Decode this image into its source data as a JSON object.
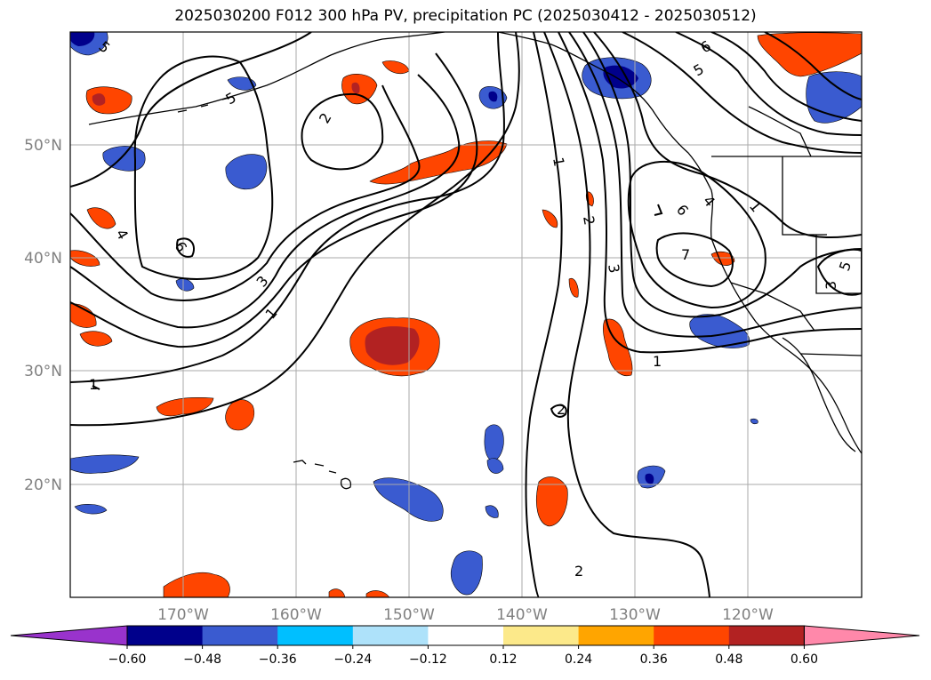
{
  "title": "2025030200 F012 300 hPa PV, precipitation PC (2025030412 - 2025030512)",
  "grid": {
    "lon_labels": [
      "170°W",
      "160°W",
      "150°W",
      "140°W",
      "130°W",
      "120°W"
    ],
    "lat_labels": [
      "50°N",
      "40°N",
      "30°N",
      "20°N"
    ]
  },
  "colorbar": {
    "ticks": [
      "−0.60",
      "−0.48",
      "−0.36",
      "−0.24",
      "−0.12",
      "0.12",
      "0.24",
      "0.36",
      "0.48",
      "0.60"
    ],
    "colors": [
      "#9933cc",
      "#00008b",
      "#3a5bd0",
      "#00bfff",
      "#aee2fa",
      "#ffffff",
      "#fce98a",
      "#ffa500",
      "#ff4500",
      "#b22222",
      "#ff88aa"
    ]
  },
  "contour_labels": [
    "1",
    "2",
    "3",
    "4",
    "5",
    "6",
    "7"
  ],
  "colors": {
    "contour": "#000000",
    "grid": "#aaaaaa",
    "coast": "#000000"
  }
}
